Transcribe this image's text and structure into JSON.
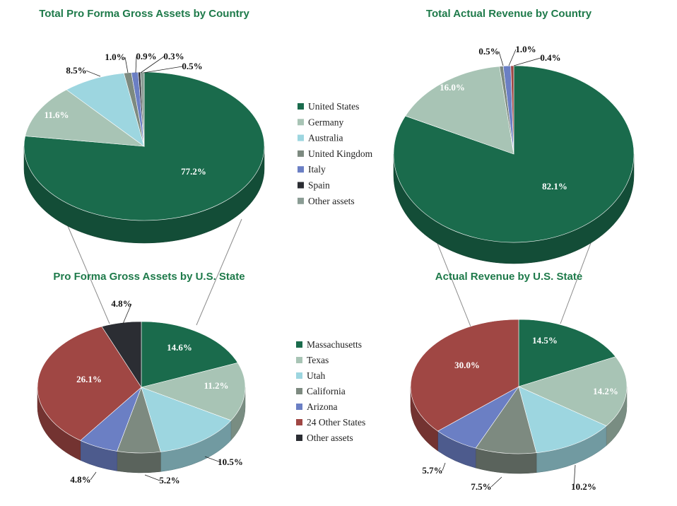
{
  "colors": {
    "title": "#1e7a4a",
    "connector": "#8a8a8a",
    "legend_top": [
      "#1a6b4c",
      "#a8c4b5",
      "#9dd6e0",
      "#7d8a80",
      "#6b7fc4",
      "#2b2d33",
      "#8a9c94"
    ],
    "legend_bottom": [
      "#1a6b4c",
      "#a8c4b5",
      "#9dd6e0",
      "#7d8a80",
      "#6b7fc4",
      "#a04744",
      "#2b2d33"
    ]
  },
  "legend_top": {
    "items": [
      "United States",
      "Germany",
      "Australia",
      "United Kingdom",
      "Italy",
      "Spain",
      "Other assets"
    ]
  },
  "legend_bottom": {
    "items": [
      "Massachusetts",
      "Texas",
      "Utah",
      "California",
      "Arizona",
      "24 Other States",
      "Other assets"
    ]
  },
  "chart_data": [
    {
      "type": "pie",
      "title": "Total Pro Forma Gross Assets by Country",
      "categories": [
        "United States",
        "Germany",
        "Australia",
        "United Kingdom",
        "Italy",
        "Spain",
        "Other assets"
      ],
      "values": [
        77.2,
        11.6,
        8.5,
        1.0,
        0.9,
        0.3,
        0.5
      ],
      "labels": [
        "77.2%",
        "11.6%",
        "8.5%",
        "1.0%",
        "0.9%",
        "0.3%",
        "0.5%"
      ],
      "colors": [
        "#1a6b4c",
        "#a8c4b5",
        "#9dd6e0",
        "#7d8a80",
        "#6b7fc4",
        "#2b2d33",
        "#8a9c94"
      ]
    },
    {
      "type": "pie",
      "title": "Total Actual Revenue by Country",
      "categories": [
        "United States",
        "Germany",
        "United Kingdom",
        "Italy",
        "Other"
      ],
      "values": [
        82.1,
        16.0,
        0.5,
        1.0,
        0.4
      ],
      "labels": [
        "82.1%",
        "16.0%",
        "0.5%",
        "1.0%",
        "0.4%"
      ],
      "colors": [
        "#1a6b4c",
        "#a8c4b5",
        "#7d8a80",
        "#6b7fc4",
        "#a04744"
      ]
    },
    {
      "type": "pie",
      "title": "Pro Forma Gross Assets by U.S. State",
      "categories": [
        "Massachusetts",
        "Texas",
        "Utah",
        "California",
        "Arizona",
        "24 Other States",
        "Other assets"
      ],
      "values": [
        14.6,
        11.2,
        10.5,
        5.2,
        4.8,
        26.1,
        4.8
      ],
      "labels": [
        "14.6%",
        "11.2%",
        "10.5%",
        "5.2%",
        "4.8%",
        "26.1%",
        "4.8%"
      ],
      "colors": [
        "#1a6b4c",
        "#a8c4b5",
        "#9dd6e0",
        "#7d8a80",
        "#6b7fc4",
        "#a04744",
        "#2b2d33"
      ]
    },
    {
      "type": "pie",
      "title": "Actual Revenue by U.S. State",
      "categories": [
        "Massachusetts",
        "Texas",
        "Utah",
        "California",
        "Arizona",
        "24 Other States"
      ],
      "values": [
        14.5,
        14.2,
        10.2,
        7.5,
        5.7,
        30.0
      ],
      "labels": [
        "14.5%",
        "14.2%",
        "10.2%",
        "7.5%",
        "5.7%",
        "30.0%"
      ],
      "colors": [
        "#1a6b4c",
        "#a8c4b5",
        "#9dd6e0",
        "#7d8a80",
        "#6b7fc4",
        "#a04744"
      ]
    }
  ]
}
